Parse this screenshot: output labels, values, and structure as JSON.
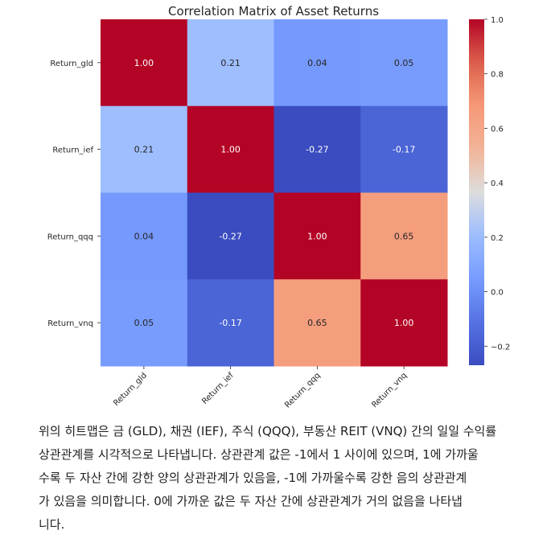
{
  "chart_data": {
    "type": "heatmap",
    "title": "Correlation Matrix of Asset Returns",
    "row_labels": [
      "Return_gld",
      "Return_ief",
      "Return_qqq",
      "Return_vnq"
    ],
    "col_labels": [
      "Return_gld",
      "Return_ief",
      "Return_qqq",
      "Return_vnq"
    ],
    "values": [
      [
        1.0,
        0.21,
        0.04,
        0.05
      ],
      [
        0.21,
        1.0,
        -0.27,
        -0.17
      ],
      [
        0.04,
        -0.27,
        1.0,
        0.65
      ],
      [
        0.05,
        -0.17,
        0.65,
        1.0
      ]
    ],
    "cell_labels": [
      [
        "1.00",
        "0.21",
        "0.04",
        "0.05"
      ],
      [
        "0.21",
        "1.00",
        "-0.27",
        "-0.17"
      ],
      [
        "0.04",
        "-0.27",
        "1.00",
        "0.65"
      ],
      [
        "0.05",
        "-0.17",
        "0.65",
        "1.00"
      ]
    ],
    "colormap": "coolwarm",
    "colorbar": {
      "range": [
        -0.27,
        1.0
      ],
      "ticks": [
        1.0,
        0.8,
        0.6,
        0.4,
        0.2,
        0.0,
        -0.2
      ],
      "tick_labels": [
        "1.0",
        "0.8",
        "0.6",
        "0.4",
        "0.2",
        "0.0",
        "−0.2"
      ]
    }
  },
  "description": {
    "lines": [
      "위의 히트맵은 금 (GLD), 채권 (IEF), 주식 (QQQ), 부동산 REIT (VNQ) 간의 일일 수익률",
      "상관관계를 시각적으로 나타냅니다. 상관관계 값은 -1에서 1 사이에 있으며, 1에 가까울",
      "수록 두 자산 간에 강한 양의 상관관계가 있음을, -1에 가까울수록 강한 음의 상관관계",
      "가 있음을 의미합니다. 0에 가까운 값은 두 자산 간에 상관관계가 거의 없음을 나타냅",
      "니다."
    ]
  }
}
